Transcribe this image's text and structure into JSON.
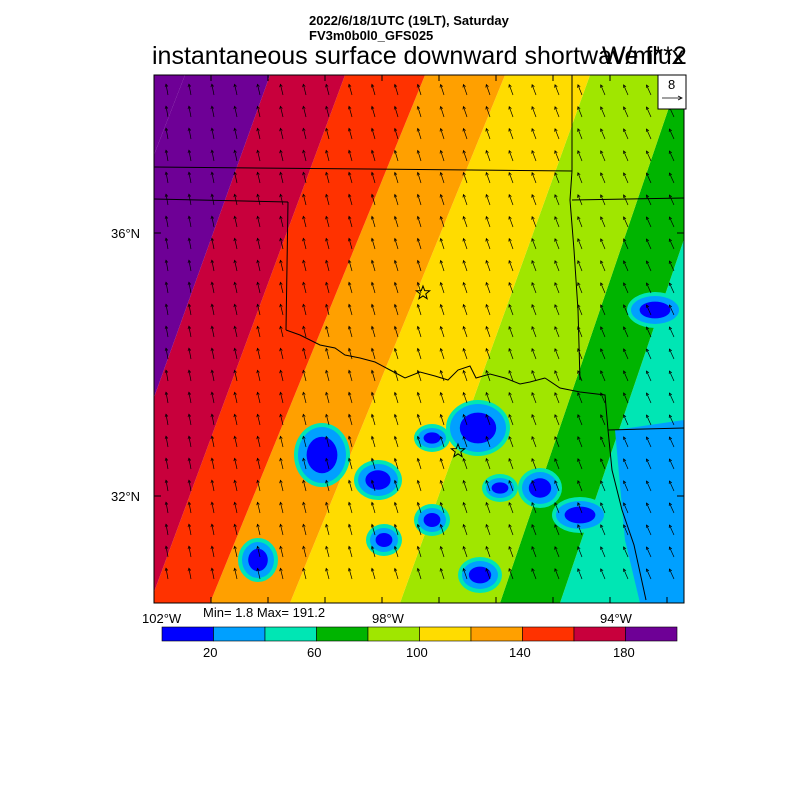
{
  "header": {
    "datetime": "2022/6/18/1UTC (19LT), Saturday",
    "model": "FV3m0b0l0_GFS025",
    "title": "instantaneous surface downward shortwave flux",
    "units": "W/m**2"
  },
  "map": {
    "lat_labels": [
      "36°N",
      "32°N"
    ],
    "lon_labels": [
      "102°W",
      "98°W",
      "94°W"
    ],
    "extent": {
      "lon_min": -102.0,
      "lon_max": -93.1,
      "lat_min": 30.6,
      "lat_max": 38.8
    },
    "stations": 2,
    "wind_reference": {
      "value": "8"
    }
  },
  "stats": {
    "text": "Min= 1.8 Max= 191.2",
    "min": 1.8,
    "max": 191.2
  },
  "colorbar": {
    "levels": [
      0,
      20,
      40,
      60,
      80,
      100,
      120,
      140,
      160,
      180,
      200
    ],
    "colors": [
      "#0000ff",
      "#00a0ff",
      "#00e6b4",
      "#00b400",
      "#a0e600",
      "#ffdc00",
      "#ffa000",
      "#ff3200",
      "#c8003c",
      "#6e0096"
    ],
    "labels": [
      "20",
      "60",
      "100",
      "140",
      "180"
    ]
  }
}
